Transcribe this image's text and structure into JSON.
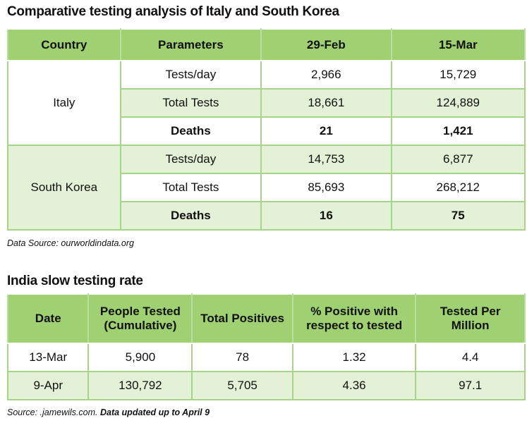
{
  "table1": {
    "title": "Comparative testing analysis of Italy and South Korea",
    "headers": [
      "Country",
      "Parameters",
      "29-Feb",
      "15-Mar"
    ],
    "groups": [
      {
        "country": "Italy",
        "rows": [
          [
            "Tests/day",
            "2,966",
            "15,729"
          ],
          [
            "Total Tests",
            "18,661",
            "124,889"
          ],
          [
            "Deaths",
            "21",
            "1,421"
          ]
        ]
      },
      {
        "country": "South Korea",
        "rows": [
          [
            "Tests/day",
            "14,753",
            "6,877"
          ],
          [
            "Total Tests",
            "85,693",
            "268,212"
          ],
          [
            "Deaths",
            "16",
            "75"
          ]
        ]
      }
    ],
    "source": "Data Source: ourworldindata.org"
  },
  "table2": {
    "title": "India slow testing rate",
    "headers": [
      "Date",
      "People Tested (Cumulative)",
      "Total Positives",
      "% Positive with respect to tested",
      "Tested Per Million"
    ],
    "rows": [
      [
        "13-Mar",
        "5,900",
        "78",
        "1.32",
        "4.4"
      ],
      [
        "9-Apr",
        "130,792",
        "5,705",
        "4.36",
        "97.1"
      ]
    ],
    "source": "Source: .jamewils.com. ",
    "source_bold": "Data updated up to April 9"
  },
  "colors": {
    "header": "#9fd071",
    "light": "#e3f1d6",
    "border": "#a8d489"
  }
}
